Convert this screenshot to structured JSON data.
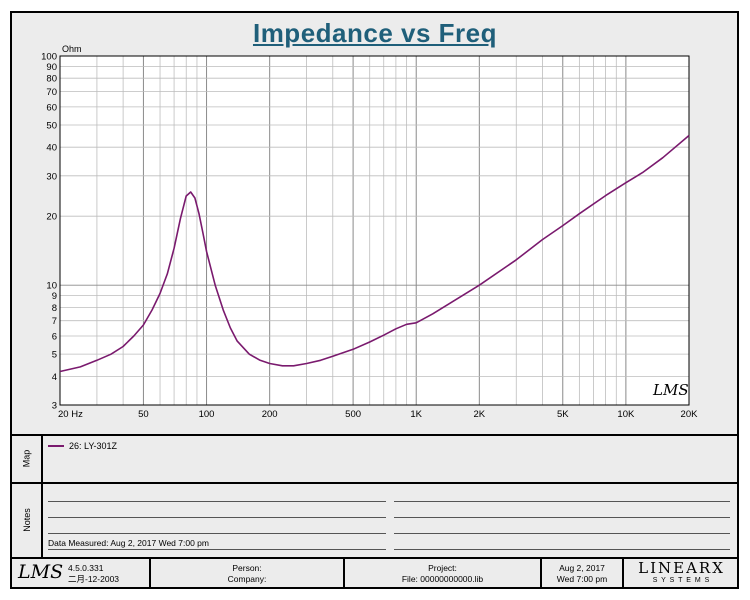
{
  "title": "Impedance vs Freq",
  "chart_data": {
    "type": "line",
    "title": "Impedance vs Freq",
    "ylabel": "Ohm",
    "xlabel": "",
    "x_scale": "log",
    "y_scale": "log",
    "xlim": [
      20,
      20000
    ],
    "ylim": [
      3,
      100
    ],
    "x_tick_labels": [
      {
        "v": 20,
        "t": "20  Hz"
      },
      {
        "v": 50,
        "t": "50"
      },
      {
        "v": 100,
        "t": "100"
      },
      {
        "v": 200,
        "t": "200"
      },
      {
        "v": 500,
        "t": "500"
      },
      {
        "v": 1000,
        "t": "1K"
      },
      {
        "v": 2000,
        "t": "2K"
      },
      {
        "v": 5000,
        "t": "5K"
      },
      {
        "v": 10000,
        "t": "10K"
      },
      {
        "v": 20000,
        "t": "20K"
      }
    ],
    "y_tick_labels": [
      3,
      4,
      5,
      6,
      7,
      8,
      9,
      10,
      20,
      30,
      40,
      50,
      60,
      70,
      80,
      90,
      100
    ],
    "grid": true,
    "series": [
      {
        "name": "26: LY-301Z",
        "color": "#7a1a6e",
        "points": [
          [
            20,
            4.2
          ],
          [
            25,
            4.4
          ],
          [
            30,
            4.7
          ],
          [
            35,
            5.0
          ],
          [
            40,
            5.4
          ],
          [
            45,
            6.0
          ],
          [
            50,
            6.7
          ],
          [
            55,
            7.8
          ],
          [
            60,
            9.2
          ],
          [
            65,
            11.2
          ],
          [
            70,
            14.5
          ],
          [
            75,
            19.5
          ],
          [
            80,
            24.5
          ],
          [
            84,
            25.5
          ],
          [
            88,
            24.0
          ],
          [
            92,
            20.5
          ],
          [
            96,
            17.0
          ],
          [
            100,
            14.0
          ],
          [
            110,
            10.0
          ],
          [
            120,
            7.8
          ],
          [
            130,
            6.5
          ],
          [
            140,
            5.7
          ],
          [
            160,
            5.0
          ],
          [
            180,
            4.7
          ],
          [
            200,
            4.55
          ],
          [
            230,
            4.45
          ],
          [
            260,
            4.45
          ],
          [
            300,
            4.55
          ],
          [
            350,
            4.7
          ],
          [
            400,
            4.9
          ],
          [
            500,
            5.25
          ],
          [
            600,
            5.65
          ],
          [
            700,
            6.05
          ],
          [
            800,
            6.45
          ],
          [
            900,
            6.75
          ],
          [
            1000,
            6.85
          ],
          [
            1200,
            7.5
          ],
          [
            1500,
            8.5
          ],
          [
            2000,
            10.0
          ],
          [
            3000,
            12.9
          ],
          [
            4000,
            15.8
          ],
          [
            5000,
            18.2
          ],
          [
            6000,
            20.5
          ],
          [
            8000,
            24.6
          ],
          [
            10000,
            28.0
          ],
          [
            12000,
            31.0
          ],
          [
            15000,
            36.0
          ],
          [
            20000,
            45.0
          ]
        ]
      }
    ],
    "watermark": "LMS"
  },
  "map": {
    "label": "Map",
    "legend_label": "26: LY-301Z"
  },
  "notes": {
    "label": "Notes",
    "data_measured": "Data Measured: Aug  2, 2017   Wed   7:00 pm"
  },
  "footer": {
    "logo": "LMS",
    "version": "4.5.0.331",
    "version_date": "二月-12-2003",
    "person_label": "Person:",
    "company_label": "Company:",
    "project_label": "Project:",
    "file_label": "File: 00000000000.lib",
    "date": "Aug  2, 2017",
    "time": "Wed  7:00 pm",
    "brand": "LINEARX",
    "brand_sub": "S Y S T E M S"
  }
}
